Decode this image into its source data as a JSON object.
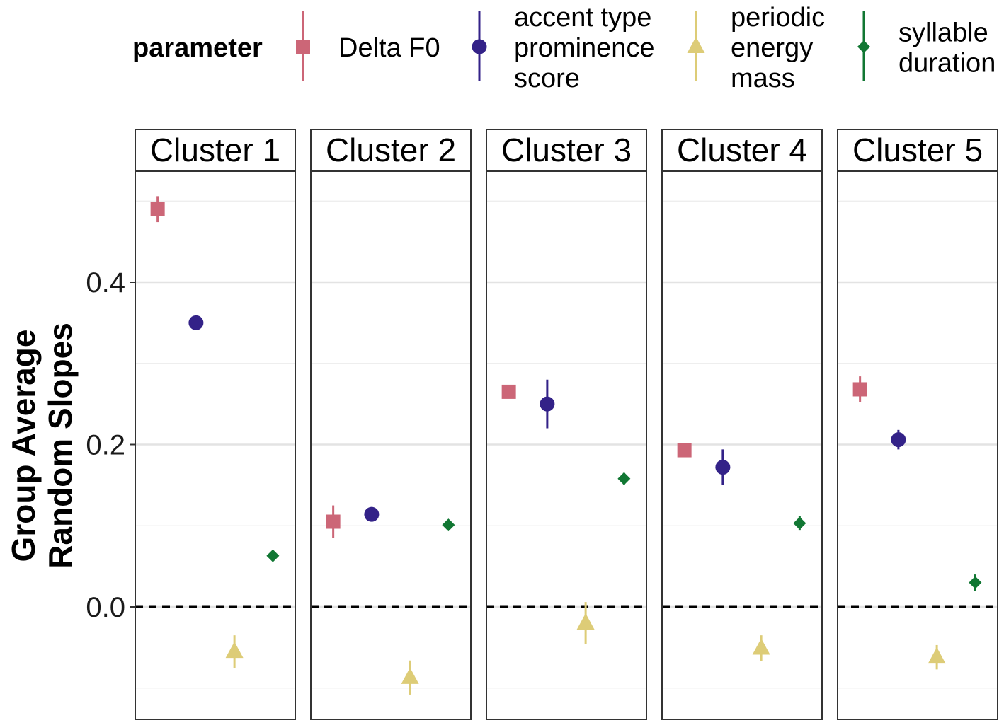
{
  "chart_data": {
    "type": "scatter",
    "title": "",
    "ylabel": "Group Average Random Slopes",
    "ylabel_lines": [
      "Group Average",
      "Random Slopes"
    ],
    "xlabel": "",
    "ylim": [
      -0.14,
      0.54
    ],
    "yticks": [
      0.0,
      0.2,
      0.4
    ],
    "ytick_labels": [
      "0.0",
      "0.2",
      "0.4"
    ],
    "reference_line": 0.0,
    "legend_title": "parameter",
    "panels": [
      "Cluster 1",
      "Cluster 2",
      "Cluster 3",
      "Cluster 4",
      "Cluster 5"
    ],
    "series": [
      {
        "name": "Delta F0",
        "label_lines": [
          "Delta F0"
        ],
        "color": "#CC6677",
        "shape": "square",
        "values": [
          0.49,
          0.105,
          0.265,
          0.193,
          0.268
        ],
        "lower": [
          0.474,
          0.085,
          0.258,
          0.185,
          0.252
        ],
        "upper": [
          0.506,
          0.125,
          0.272,
          0.201,
          0.284
        ]
      },
      {
        "name": "accent type prominence score",
        "label_lines": [
          "accent type",
          "prominence",
          "score"
        ],
        "color": "#332288",
        "shape": "circle",
        "values": [
          0.35,
          0.114,
          0.25,
          0.172,
          0.206
        ],
        "lower": [
          0.345,
          0.109,
          0.22,
          0.15,
          0.194
        ],
        "upper": [
          0.355,
          0.119,
          0.28,
          0.194,
          0.218
        ]
      },
      {
        "name": "periodic energy mass",
        "label_lines": [
          "periodic",
          "energy",
          "mass"
        ],
        "color": "#DDCC77",
        "shape": "triangle",
        "values": [
          -0.055,
          -0.087,
          -0.02,
          -0.051,
          -0.062
        ],
        "lower": [
          -0.075,
          -0.108,
          -0.046,
          -0.067,
          -0.077
        ],
        "upper": [
          -0.035,
          -0.066,
          0.006,
          -0.035,
          -0.047
        ]
      },
      {
        "name": "syllable duration",
        "label_lines": [
          "syllable",
          "duration"
        ],
        "color": "#117733",
        "shape": "diamond",
        "values": [
          0.063,
          0.101,
          0.158,
          0.103,
          0.03
        ],
        "lower": [
          0.058,
          0.097,
          0.151,
          0.094,
          0.02
        ],
        "upper": [
          0.068,
          0.105,
          0.165,
          0.112,
          0.04
        ]
      }
    ]
  }
}
